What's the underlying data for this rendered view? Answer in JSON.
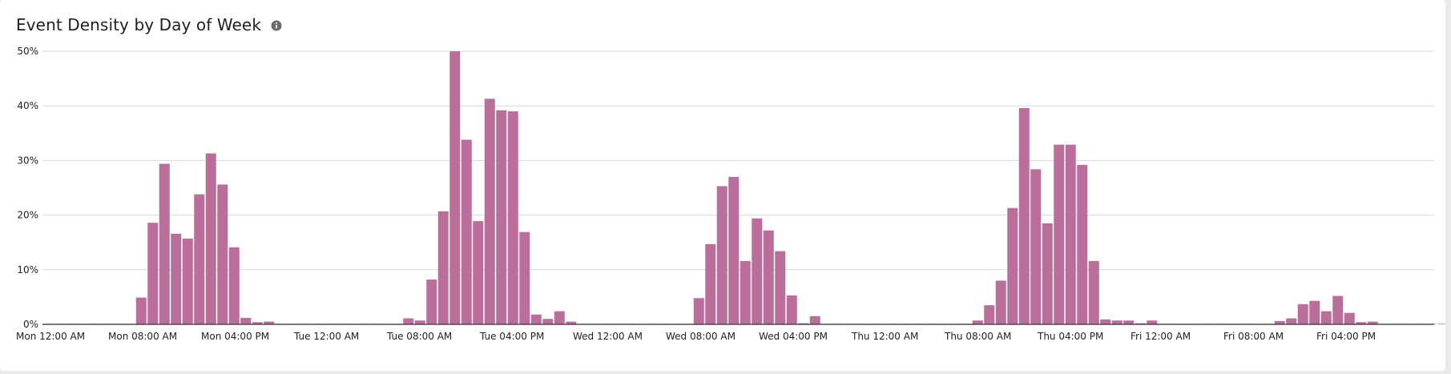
{
  "chart_data": {
    "type": "bar",
    "title": "Event Density by Day of Week",
    "xlabel": "",
    "ylabel": "",
    "ylim": [
      0,
      50
    ],
    "y_ticks": [
      0,
      10,
      20,
      30,
      40,
      50
    ],
    "y_tick_labels": [
      "0%",
      "10%",
      "20%",
      "30%",
      "40%",
      "50%"
    ],
    "x_tick_labels": [
      {
        "label": "Mon 12:00 AM",
        "bin": 0
      },
      {
        "label": "Mon 08:00 AM",
        "bin": 8
      },
      {
        "label": "Mon 04:00 PM",
        "bin": 16
      },
      {
        "label": "Tue 12:00 AM",
        "bin": 24
      },
      {
        "label": "Tue 08:00 AM",
        "bin": 32
      },
      {
        "label": "Tue 04:00 PM",
        "bin": 40
      },
      {
        "label": "Wed 12:00 AM",
        "bin": 48
      },
      {
        "label": "Wed 08:00 AM",
        "bin": 56
      },
      {
        "label": "Wed 04:00 PM",
        "bin": 64
      },
      {
        "label": "Thu 12:00 AM",
        "bin": 72
      },
      {
        "label": "Thu 08:00 AM",
        "bin": 80
      },
      {
        "label": "Thu 04:00 PM",
        "bin": 88
      },
      {
        "label": "Fri 12:00 AM",
        "bin": 96
      },
      {
        "label": "Fri 08:00 AM",
        "bin": 104
      },
      {
        "label": "Fri 04:00 PM",
        "bin": 112
      }
    ],
    "bin_unit": "hour",
    "values": [
      0.1,
      0.1,
      0.1,
      0.1,
      0.1,
      0.1,
      0.1,
      0.1,
      4.9,
      18.6,
      29.4,
      16.6,
      15.7,
      23.8,
      31.3,
      25.6,
      14.1,
      1.2,
      0.4,
      0.5,
      0.1,
      0.1,
      0.1,
      0.1,
      0.1,
      0.1,
      0.1,
      0.1,
      0.1,
      0.1,
      0.1,
      1.1,
      0.7,
      8.2,
      20.7,
      50.0,
      33.8,
      18.9,
      41.3,
      39.2,
      39.0,
      16.9,
      1.8,
      1.0,
      2.4,
      0.5,
      0.1,
      0.1,
      0.1,
      0.1,
      0.1,
      0.1,
      0.1,
      0.1,
      0.1,
      0.1,
      4.8,
      14.7,
      25.3,
      27.0,
      11.6,
      19.4,
      17.2,
      13.4,
      5.3,
      0.2,
      1.5,
      0.1,
      0.1,
      0.1,
      0.1,
      0.1,
      0.1,
      0.1,
      0.1,
      0.1,
      0.1,
      0.1,
      0.1,
      0.1,
      0.7,
      3.5,
      8.0,
      21.3,
      39.6,
      28.4,
      18.5,
      32.9,
      32.9,
      29.2,
      11.6,
      0.9,
      0.7,
      0.7,
      0.2,
      0.7,
      0.1,
      0.1,
      0.1,
      0.1,
      0.1,
      0.1,
      0.1,
      0.1,
      0.1,
      0.1,
      0.6,
      1.1,
      3.7,
      4.3,
      2.4,
      5.2,
      2.1,
      0.4,
      0.5,
      0.1,
      0.1,
      0.1,
      0.1,
      0.1,
      0.1
    ],
    "bar_color": "#bc6e9b",
    "grid": true,
    "legend": "none"
  },
  "info_icon": "info-icon"
}
